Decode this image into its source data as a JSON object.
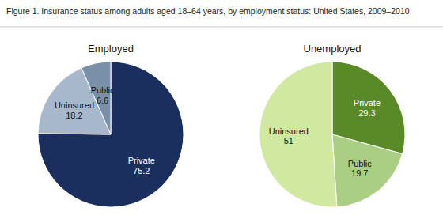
{
  "chart_data": [
    {
      "type": "pie",
      "title": "Figure 1. Insurance status among adults aged 18–64 years, by employment status: United States, 2009–2010",
      "subtitle": "Employed",
      "categories": [
        "Private",
        "Uninsured",
        "Public"
      ],
      "values": [
        75.2,
        18.2,
        6.6
      ],
      "colors": [
        "#1a2f5e",
        "#a8b8cc",
        "#7a90a8"
      ],
      "data_labels": true
    },
    {
      "type": "pie",
      "subtitle": "Unemployed",
      "categories": [
        "Private",
        "Public",
        "Uninsured"
      ],
      "values": [
        29.3,
        19.7,
        51.0
      ],
      "colors": [
        "#5a8a28",
        "#aacf84",
        "#d0e8a0"
      ],
      "data_labels": true
    }
  ]
}
